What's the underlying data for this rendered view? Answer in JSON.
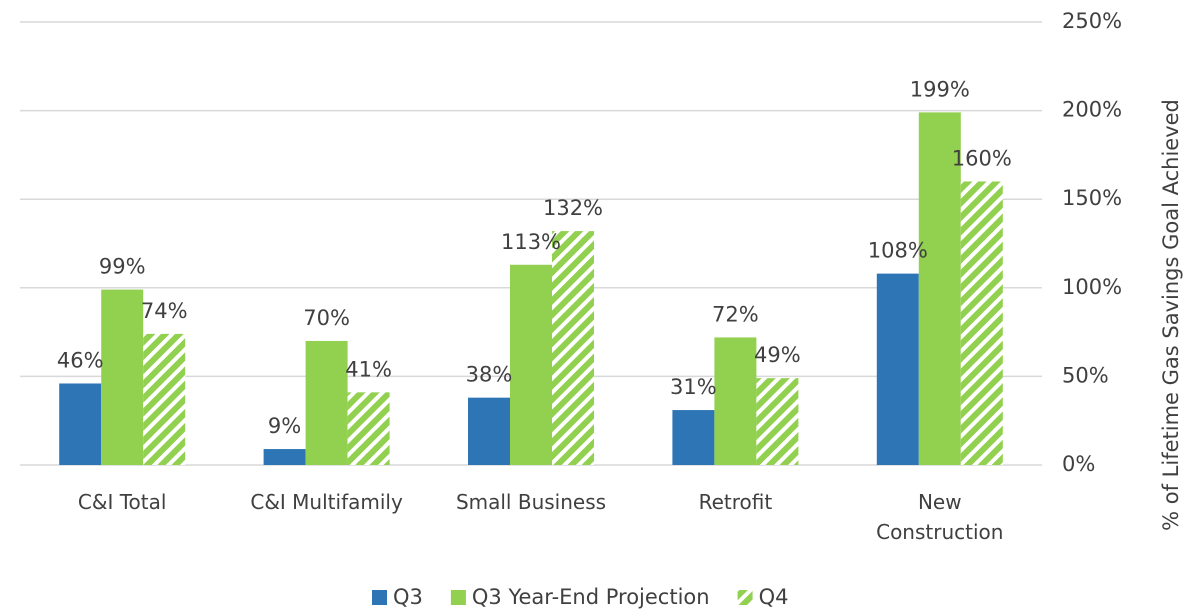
{
  "chart_data": {
    "type": "bar",
    "categories": [
      "C&I Total",
      "C&I Multifamily",
      "Small Business",
      "Retrofit",
      "New\nConstruction"
    ],
    "series": [
      {
        "name": "Q3",
        "color": "#2e75b6",
        "values": [
          46,
          9,
          38,
          31,
          108
        ],
        "value_labels": [
          "46%",
          "9%",
          "38%",
          "31%",
          "108%"
        ]
      },
      {
        "name": "Q3 Year-End Projection",
        "color": "#92d050",
        "values": [
          99,
          70,
          113,
          72,
          199
        ],
        "value_labels": [
          "99%",
          "70%",
          "113%",
          "72%",
          "199%"
        ]
      },
      {
        "name": "Q4",
        "color": "#92d050",
        "hatch": true,
        "values": [
          74,
          41,
          132,
          49,
          160
        ],
        "value_labels": [
          "74%",
          "41%",
          "132%",
          "49%",
          "160%"
        ]
      }
    ],
    "ylabel": "% of Lifetime Gas Savings Goal Achieved",
    "ylim": [
      0,
      250
    ],
    "yticks": [
      {
        "value": 0,
        "label": "0%"
      },
      {
        "value": 50,
        "label": "50%"
      },
      {
        "value": 100,
        "label": "100%"
      },
      {
        "value": 150,
        "label": "150%"
      },
      {
        "value": 200,
        "label": "200%"
      },
      {
        "value": 250,
        "label": "250%"
      }
    ],
    "grid": true,
    "yaxis_side": "right",
    "legend": "bottom"
  }
}
